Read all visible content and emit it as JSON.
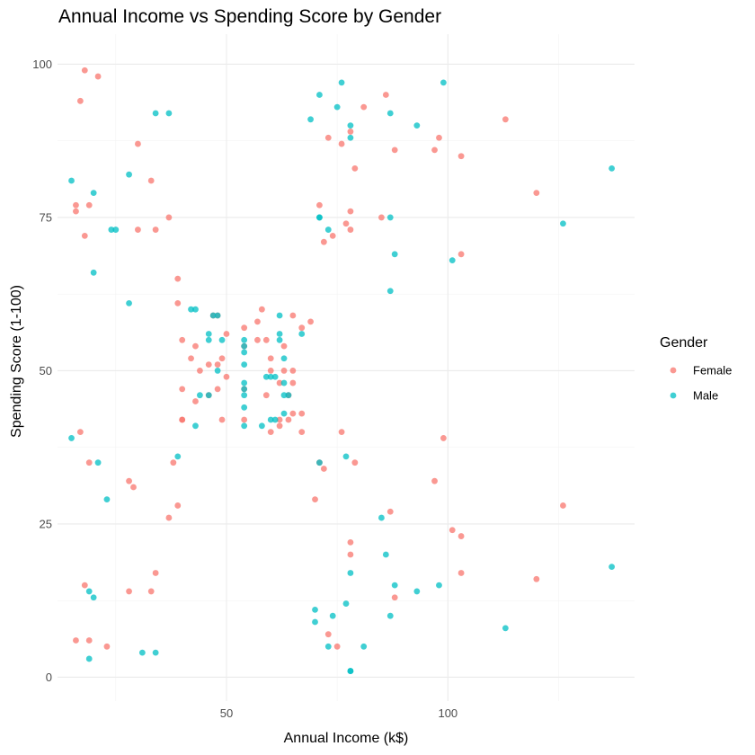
{
  "chart_data": {
    "type": "scatter",
    "title": "Annual Income vs Spending Score by Gender",
    "xlabel": "Annual Income (k$)",
    "ylabel": "Spending Score (1-100)",
    "xlim": [
      11.85,
      142.15
    ],
    "ylim": [
      -3.9,
      104.9
    ],
    "x_ticks": [
      50,
      100
    ],
    "x_minor_ticks": [
      25,
      75,
      125
    ],
    "y_ticks": [
      0,
      25,
      50,
      75,
      100
    ],
    "y_minor_ticks": [
      12.5,
      37.5,
      62.5,
      87.5
    ],
    "grid": true,
    "legend": {
      "title": "Gender",
      "position": "right"
    },
    "series": [
      {
        "name": "Female",
        "color": "#F8766D",
        "points": [
          [
            19,
            6
          ],
          [
            16,
            6
          ],
          [
            17,
            94
          ],
          [
            17,
            40
          ],
          [
            16,
            76
          ],
          [
            18,
            99
          ],
          [
            18,
            15
          ],
          [
            19,
            77
          ],
          [
            19,
            35
          ],
          [
            21,
            98
          ],
          [
            23,
            5
          ],
          [
            28,
            14
          ],
          [
            28,
            32
          ],
          [
            29,
            31
          ],
          [
            30,
            73
          ],
          [
            30,
            87
          ],
          [
            33,
            14
          ],
          [
            33,
            81
          ],
          [
            34,
            17
          ],
          [
            34,
            73
          ],
          [
            37,
            26
          ],
          [
            37,
            75
          ],
          [
            38,
            35
          ],
          [
            39,
            28
          ],
          [
            39,
            61
          ],
          [
            39,
            65
          ],
          [
            40,
            55
          ],
          [
            40,
            47
          ],
          [
            40,
            42
          ],
          [
            40,
            42
          ],
          [
            42,
            52
          ],
          [
            43,
            54
          ],
          [
            43,
            45
          ],
          [
            44,
            50
          ],
          [
            46,
            51
          ],
          [
            46,
            46
          ],
          [
            47,
            59
          ],
          [
            48,
            51
          ],
          [
            48,
            47
          ],
          [
            48,
            59
          ],
          [
            49,
            42
          ],
          [
            49,
            52
          ],
          [
            50,
            49
          ],
          [
            50,
            56
          ],
          [
            54,
            47
          ],
          [
            54,
            54
          ],
          [
            54,
            57
          ],
          [
            54,
            42
          ],
          [
            57,
            58
          ],
          [
            57,
            55
          ],
          [
            58,
            60
          ],
          [
            59,
            55
          ],
          [
            59,
            46
          ],
          [
            60,
            52
          ],
          [
            60,
            50
          ],
          [
            60,
            40
          ],
          [
            62,
            42
          ],
          [
            62,
            48
          ],
          [
            62,
            41
          ],
          [
            63,
            50
          ],
          [
            63,
            54
          ],
          [
            64,
            42
          ],
          [
            64,
            46
          ],
          [
            65,
            48
          ],
          [
            65,
            50
          ],
          [
            65,
            43
          ],
          [
            65,
            59
          ],
          [
            67,
            43
          ],
          [
            67,
            57
          ],
          [
            67,
            40
          ],
          [
            69,
            58
          ],
          [
            70,
            29
          ],
          [
            71,
            77
          ],
          [
            71,
            35
          ],
          [
            72,
            34
          ],
          [
            72,
            71
          ],
          [
            73,
            88
          ],
          [
            73,
            7
          ],
          [
            74,
            72
          ],
          [
            75,
            5
          ],
          [
            76,
            87
          ],
          [
            76,
            40
          ],
          [
            77,
            74
          ],
          [
            78,
            73
          ],
          [
            78,
            76
          ],
          [
            78,
            89
          ],
          [
            78,
            22
          ],
          [
            78,
            20
          ],
          [
            79,
            35
          ],
          [
            79,
            83
          ],
          [
            81,
            93
          ],
          [
            85,
            75
          ],
          [
            86,
            95
          ],
          [
            87,
            27
          ],
          [
            88,
            13
          ],
          [
            88,
            86
          ],
          [
            97,
            32
          ],
          [
            97,
            86
          ],
          [
            98,
            88
          ],
          [
            99,
            39
          ],
          [
            101,
            24
          ],
          [
            103,
            17
          ],
          [
            103,
            85
          ],
          [
            103,
            23
          ],
          [
            103,
            69
          ],
          [
            113,
            91
          ],
          [
            120,
            79
          ],
          [
            126,
            28
          ],
          [
            120,
            16
          ],
          [
            16,
            77
          ],
          [
            18,
            72
          ]
        ]
      },
      {
        "name": "Male",
        "color": "#00BFC4",
        "points": [
          [
            15,
            39
          ],
          [
            15,
            81
          ],
          [
            19,
            3
          ],
          [
            19,
            14
          ],
          [
            20,
            13
          ],
          [
            20,
            79
          ],
          [
            20,
            66
          ],
          [
            21,
            35
          ],
          [
            23,
            29
          ],
          [
            24,
            73
          ],
          [
            25,
            73
          ],
          [
            28,
            82
          ],
          [
            28,
            61
          ],
          [
            31,
            4
          ],
          [
            34,
            4
          ],
          [
            34,
            92
          ],
          [
            37,
            92
          ],
          [
            39,
            36
          ],
          [
            42,
            60
          ],
          [
            43,
            60
          ],
          [
            43,
            41
          ],
          [
            44,
            46
          ],
          [
            46,
            46
          ],
          [
            46,
            56
          ],
          [
            46,
            55
          ],
          [
            47,
            59
          ],
          [
            48,
            50
          ],
          [
            48,
            59
          ],
          [
            49,
            55
          ],
          [
            54,
            41
          ],
          [
            54,
            44
          ],
          [
            54,
            46
          ],
          [
            54,
            47
          ],
          [
            54,
            48
          ],
          [
            54,
            51
          ],
          [
            54,
            53
          ],
          [
            54,
            54
          ],
          [
            54,
            55
          ],
          [
            58,
            41
          ],
          [
            59,
            49
          ],
          [
            60,
            49
          ],
          [
            60,
            42
          ],
          [
            61,
            42
          ],
          [
            61,
            49
          ],
          [
            62,
            59
          ],
          [
            62,
            56
          ],
          [
            62,
            55
          ],
          [
            63,
            52
          ],
          [
            63,
            46
          ],
          [
            63,
            48
          ],
          [
            63,
            43
          ],
          [
            64,
            46
          ],
          [
            67,
            56
          ],
          [
            69,
            91
          ],
          [
            70,
            11
          ],
          [
            70,
            9
          ],
          [
            71,
            75
          ],
          [
            71,
            75
          ],
          [
            71,
            95
          ],
          [
            71,
            35
          ],
          [
            73,
            5
          ],
          [
            73,
            73
          ],
          [
            74,
            10
          ],
          [
            75,
            93
          ],
          [
            76,
            97
          ],
          [
            77,
            12
          ],
          [
            77,
            36
          ],
          [
            78,
            1
          ],
          [
            78,
            1
          ],
          [
            78,
            17
          ],
          [
            78,
            90
          ],
          [
            78,
            88
          ],
          [
            81,
            5
          ],
          [
            85,
            26
          ],
          [
            86,
            20
          ],
          [
            87,
            63
          ],
          [
            87,
            75
          ],
          [
            87,
            92
          ],
          [
            87,
            10
          ],
          [
            88,
            69
          ],
          [
            88,
            15
          ],
          [
            93,
            14
          ],
          [
            93,
            90
          ],
          [
            98,
            15
          ],
          [
            99,
            97
          ],
          [
            101,
            68
          ],
          [
            113,
            8
          ],
          [
            126,
            74
          ],
          [
            137,
            18
          ],
          [
            137,
            83
          ]
        ]
      }
    ]
  }
}
